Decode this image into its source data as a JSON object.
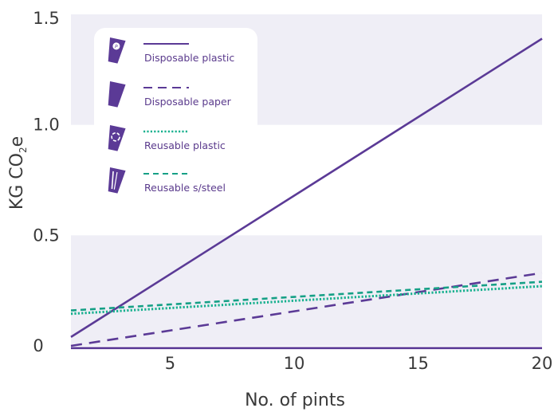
{
  "chart_data": {
    "type": "line",
    "xlabel": "No. of pints",
    "ylabel": {
      "main": "KG CO",
      "subscript": "2",
      "suffix": "e"
    },
    "xlim": [
      1,
      20
    ],
    "ylim": [
      0,
      1.5
    ],
    "x_ticks": [
      {
        "value": 5,
        "label": "5"
      },
      {
        "value": 10,
        "label": "10"
      },
      {
        "value": 15,
        "label": "15"
      },
      {
        "value": 20,
        "label": "20"
      }
    ],
    "y_ticks": [
      {
        "value": 0,
        "label": "0"
      },
      {
        "value": 0.5,
        "label": "0.5"
      },
      {
        "value": 1.0,
        "label": "1.0"
      },
      {
        "value": 1.5,
        "label": "1.5"
      }
    ],
    "background_bands": [
      {
        "from": 0,
        "to": 0.5,
        "color": "#efeef6"
      },
      {
        "from": 1.0,
        "to": 1.5,
        "color": "#efeef6"
      }
    ],
    "legend_position": "top-left",
    "series": [
      {
        "name": "Disposable plastic",
        "color": "#5b3a96",
        "style": "solid",
        "icon": "disposable-plastic-cup-icon",
        "points": [
          [
            1,
            0.04
          ],
          [
            20,
            1.39
          ]
        ]
      },
      {
        "name": "Disposable paper",
        "color": "#5b3a96",
        "style": "dashed",
        "icon": "disposable-paper-cup-icon",
        "points": [
          [
            1,
            0.0
          ],
          [
            20,
            0.33
          ]
        ]
      },
      {
        "name": "Reusable plastic",
        "color": "#16b08e",
        "style": "dotted",
        "icon": "reusable-plastic-cup-icon",
        "points": [
          [
            1,
            0.145
          ],
          [
            20,
            0.27
          ]
        ]
      },
      {
        "name": "Reusable s/steel",
        "color": "#16a086",
        "style": "dashed-short",
        "icon": "reusable-steel-cup-icon",
        "points": [
          [
            1,
            0.16
          ],
          [
            20,
            0.29
          ]
        ]
      },
      {
        "name": "",
        "color": "#5b3a96",
        "style": "solid",
        "points": [
          [
            1,
            -0.01
          ],
          [
            20,
            -0.01
          ]
        ]
      }
    ]
  }
}
